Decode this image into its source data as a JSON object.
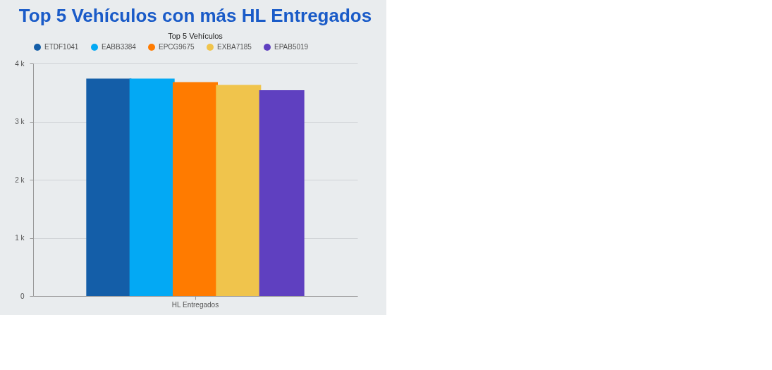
{
  "chart_data": {
    "type": "bar",
    "title": "Top 5 Vehículos con más HL Entregados",
    "subtitle": "Top 5 Vehículos",
    "categories": [
      "HL Entregados"
    ],
    "series": [
      {
        "name": "ETDF1041",
        "color": "#145ea8",
        "values": [
          3740
        ]
      },
      {
        "name": "EABB3384",
        "color": "#03a9f4",
        "values": [
          3740
        ]
      },
      {
        "name": "EPCG9675",
        "color": "#ff7b00",
        "values": [
          3680
        ]
      },
      {
        "name": "EXBA7185",
        "color": "#f0c44c",
        "values": [
          3630
        ]
      },
      {
        "name": "EPAB5019",
        "color": "#5f40c0",
        "values": [
          3540
        ]
      }
    ],
    "ylim": [
      0,
      4000
    ],
    "yticks": [
      0,
      {
        "value": 1000,
        "label": "1 k"
      },
      {
        "value": 2000,
        "label": "2 k"
      },
      {
        "value": 3000,
        "label": "3 k"
      },
      {
        "value": 4000,
        "label": "4 k"
      }
    ],
    "grid": "y",
    "legend": "top left"
  }
}
